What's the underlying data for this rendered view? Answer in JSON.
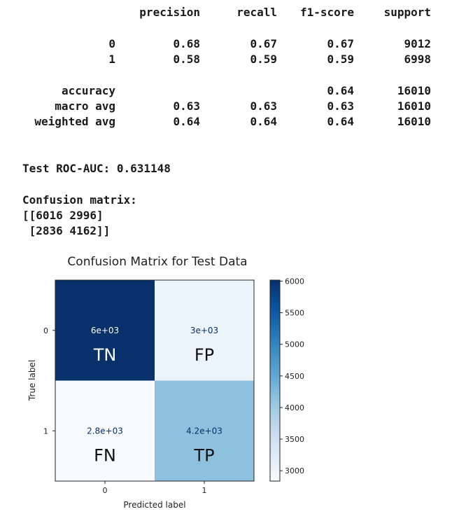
{
  "report": {
    "headers": [
      "precision",
      "recall",
      "f1-score",
      "support"
    ],
    "rows": [
      {
        "label": "0",
        "precision": "0.68",
        "recall": "0.67",
        "f1": "0.67",
        "support": "9012"
      },
      {
        "label": "1",
        "precision": "0.58",
        "recall": "0.59",
        "f1": "0.59",
        "support": "6998"
      },
      {
        "label": "accuracy",
        "precision": "",
        "recall": "",
        "f1": "0.64",
        "support": "16010"
      },
      {
        "label": "macro avg",
        "precision": "0.63",
        "recall": "0.63",
        "f1": "0.63",
        "support": "16010"
      },
      {
        "label": "weighted avg",
        "precision": "0.64",
        "recall": "0.64",
        "f1": "0.64",
        "support": "16010"
      }
    ]
  },
  "roc_line": "Test ROC-AUC: 0.631148",
  "cm_text": {
    "title": "Confusion matrix:",
    "line1": "[[6016 2996]",
    "line2": " [2836 4162]]"
  },
  "chart_data": {
    "type": "heatmap",
    "title": "Confusion Matrix for Test Data",
    "xlabel": "Predicted label",
    "ylabel": "True label",
    "x_categories": [
      "0",
      "1"
    ],
    "y_categories": [
      "0",
      "1"
    ],
    "values": [
      [
        6016,
        2996
      ],
      [
        2836,
        4162
      ]
    ],
    "cell_text": [
      [
        "6e+03",
        "3e+03"
      ],
      [
        "2.8e+03",
        "4.2e+03"
      ]
    ],
    "annotations": [
      [
        "TN",
        "FP"
      ],
      [
        "FN",
        "TP"
      ]
    ],
    "colormap": "Blues",
    "vmin": 2836,
    "vmax": 6016,
    "colorbar_ticks": [
      6000,
      5500,
      5000,
      4500,
      4000,
      3500,
      3000
    ],
    "colors": {
      "max": "#08306b",
      "min": "#f7fbff"
    }
  }
}
